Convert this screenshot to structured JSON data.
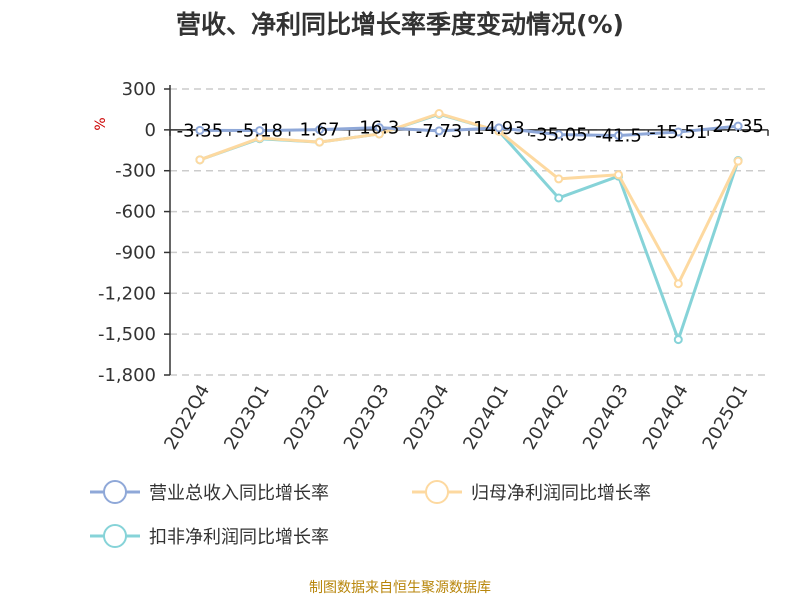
{
  "title": "营收、净利同比增长率季度变动情况(%)",
  "unit_label": "%",
  "source": "制图数据来自恒生聚源数据库",
  "chart_data": {
    "type": "line",
    "title": "营收、净利同比增长率季度变动情况(%)",
    "ylabel": "%",
    "categories": [
      "2022Q4",
      "2023Q1",
      "2023Q2",
      "2023Q3",
      "2023Q4",
      "2024Q1",
      "2024Q2",
      "2024Q3",
      "2024Q4",
      "2025Q1"
    ],
    "ylim": [
      -1800,
      300
    ],
    "yticks": [
      300,
      0,
      -300,
      -600,
      -900,
      -1200,
      -1500,
      -1800
    ],
    "ytick_labels": [
      "300",
      "0",
      "-300",
      "-600",
      "-900",
      "-1,200",
      "-1,500",
      "-1,800"
    ],
    "grid": true,
    "legend_position": "bottom",
    "series": [
      {
        "name": "营业总收入同比增长率",
        "color": "#8fa8d8",
        "values": [
          -3.35,
          -5.18,
          1.67,
          16.3,
          -7.73,
          14.93,
          -35.05,
          -41.5,
          -15.51,
          27.35
        ],
        "labels": [
          "-3.35",
          "-5.18",
          "1.67",
          "16.3",
          "-7.73",
          "14.93",
          "-35.05",
          "-41.5",
          "-15.51",
          "27.35"
        ]
      },
      {
        "name": "归母净利润同比增长率",
        "color": "#fdd9a0",
        "values": [
          -220,
          -60,
          -90,
          -30,
          120,
          -10,
          -360,
          -330,
          -1130,
          -230
        ]
      },
      {
        "name": "扣非净利润同比增长率",
        "color": "#86d3d8",
        "values": [
          -220,
          -65,
          -90,
          -30,
          115,
          -10,
          -500,
          -340,
          -1540,
          -225
        ]
      }
    ]
  }
}
